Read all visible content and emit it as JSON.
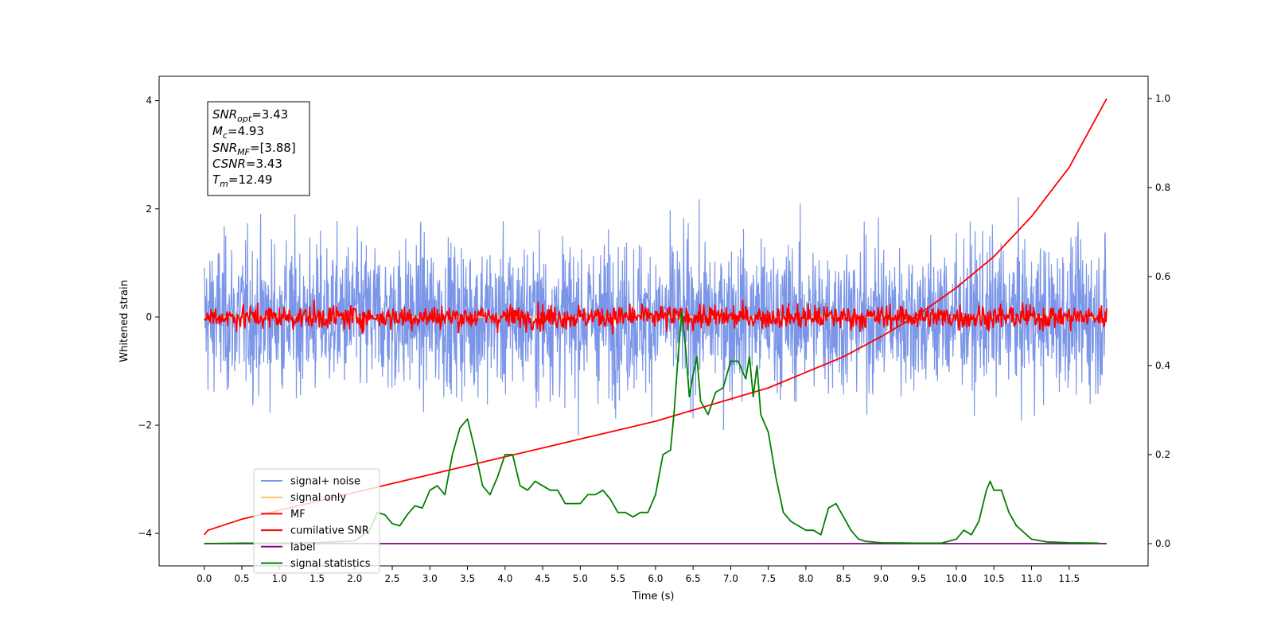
{
  "chart_data": {
    "type": "line",
    "xlabel": "Time (s)",
    "ylabel": "Whitened strain",
    "xlim": [
      -0.6,
      12.55
    ],
    "ylim": [
      -4.6,
      4.45
    ],
    "y2lim": [
      -0.05,
      1.05
    ],
    "xticks": [
      "0.0",
      "0.5",
      "1.0",
      "1.5",
      "2.0",
      "2.5",
      "3.0",
      "3.5",
      "4.0",
      "4.5",
      "5.0",
      "5.5",
      "6.0",
      "6.5",
      "7.0",
      "7.5",
      "8.0",
      "8.5",
      "9.0",
      "9.5",
      "10.0",
      "10.5",
      "11.0",
      "11.5"
    ],
    "yticks": [
      "-4",
      "-2",
      "0",
      "2",
      "4"
    ],
    "y2ticks": [
      "0.0",
      "0.2",
      "0.4",
      "0.6",
      "0.8",
      "1.0"
    ],
    "grid": false,
    "legend_position": "lower-left",
    "info_box": {
      "snr_opt": "=3.43",
      "mc": "=4.93",
      "snr_mf": "=[3.88]",
      "csnr": "=3.43",
      "tm": "=12.49"
    },
    "series": [
      {
        "name": "signal+ noise",
        "color": "#7b96e8",
        "axis": "left",
        "style": "noise",
        "amplitude": 1.25,
        "x_range": [
          0,
          12.0
        ],
        "samples": 2400
      },
      {
        "name": "signal only",
        "color": "#ffc66e",
        "axis": "left",
        "style": "flat",
        "value": 0.0,
        "x_range": [
          0,
          12.0
        ]
      },
      {
        "name": "MF",
        "color": "#ff0000",
        "axis": "left",
        "style": "noise",
        "amplitude": 0.2,
        "x_range": [
          0,
          12.0
        ],
        "samples": 1200
      },
      {
        "name": "cumilative SNR",
        "color": "#ff0000",
        "axis": "right",
        "style": "line",
        "x": [
          0.0,
          0.05,
          0.5,
          1.0,
          1.5,
          2.0,
          2.5,
          3.0,
          3.5,
          4.0,
          4.5,
          5.0,
          5.5,
          6.0,
          6.5,
          7.0,
          7.5,
          8.0,
          8.5,
          9.0,
          9.5,
          10.0,
          10.5,
          11.0,
          11.5,
          12.0
        ],
        "y": [
          0.02,
          0.03,
          0.055,
          0.075,
          0.095,
          0.115,
          0.135,
          0.155,
          0.175,
          0.195,
          0.215,
          0.235,
          0.255,
          0.275,
          0.3,
          0.325,
          0.35,
          0.385,
          0.42,
          0.465,
          0.515,
          0.575,
          0.645,
          0.735,
          0.845,
          1.0
        ]
      },
      {
        "name": "label",
        "color": "#800080",
        "axis": "right",
        "style": "line",
        "x": [
          0.0,
          12.0
        ],
        "y": [
          0.0,
          0.0
        ]
      },
      {
        "name": "signal statistics",
        "color": "#008000",
        "axis": "right",
        "style": "line",
        "x": [
          0.0,
          0.5,
          1.0,
          1.5,
          2.0,
          2.2,
          2.3,
          2.4,
          2.5,
          2.6,
          2.7,
          2.8,
          2.9,
          3.0,
          3.1,
          3.2,
          3.3,
          3.4,
          3.5,
          3.6,
          3.7,
          3.8,
          3.9,
          4.0,
          4.1,
          4.2,
          4.3,
          4.4,
          4.5,
          4.6,
          4.7,
          4.8,
          4.9,
          5.0,
          5.1,
          5.2,
          5.3,
          5.4,
          5.5,
          5.6,
          5.7,
          5.8,
          5.9,
          6.0,
          6.1,
          6.2,
          6.25,
          6.3,
          6.35,
          6.4,
          6.45,
          6.5,
          6.55,
          6.6,
          6.7,
          6.8,
          6.9,
          7.0,
          7.1,
          7.2,
          7.25,
          7.3,
          7.35,
          7.4,
          7.5,
          7.6,
          7.7,
          7.8,
          7.9,
          8.0,
          8.1,
          8.2,
          8.3,
          8.4,
          8.5,
          8.6,
          8.7,
          8.8,
          9.0,
          9.5,
          9.8,
          10.0,
          10.1,
          10.2,
          10.3,
          10.4,
          10.45,
          10.5,
          10.6,
          10.7,
          10.8,
          11.0,
          11.2,
          11.5,
          11.9
        ],
        "y": [
          0.0,
          0.001,
          0.001,
          0.002,
          0.006,
          0.03,
          0.07,
          0.065,
          0.045,
          0.04,
          0.065,
          0.085,
          0.08,
          0.12,
          0.13,
          0.11,
          0.2,
          0.26,
          0.28,
          0.21,
          0.13,
          0.11,
          0.15,
          0.2,
          0.2,
          0.13,
          0.12,
          0.14,
          0.13,
          0.12,
          0.12,
          0.09,
          0.09,
          0.09,
          0.11,
          0.11,
          0.12,
          0.1,
          0.07,
          0.07,
          0.06,
          0.07,
          0.07,
          0.11,
          0.2,
          0.21,
          0.3,
          0.42,
          0.52,
          0.44,
          0.33,
          0.38,
          0.42,
          0.32,
          0.29,
          0.34,
          0.35,
          0.41,
          0.41,
          0.37,
          0.42,
          0.33,
          0.4,
          0.29,
          0.25,
          0.15,
          0.07,
          0.05,
          0.04,
          0.03,
          0.03,
          0.02,
          0.08,
          0.09,
          0.06,
          0.03,
          0.01,
          0.005,
          0.002,
          0.001,
          0.001,
          0.01,
          0.03,
          0.02,
          0.05,
          0.12,
          0.14,
          0.12,
          0.12,
          0.07,
          0.04,
          0.01,
          0.004,
          0.002,
          0.001
        ]
      }
    ]
  }
}
